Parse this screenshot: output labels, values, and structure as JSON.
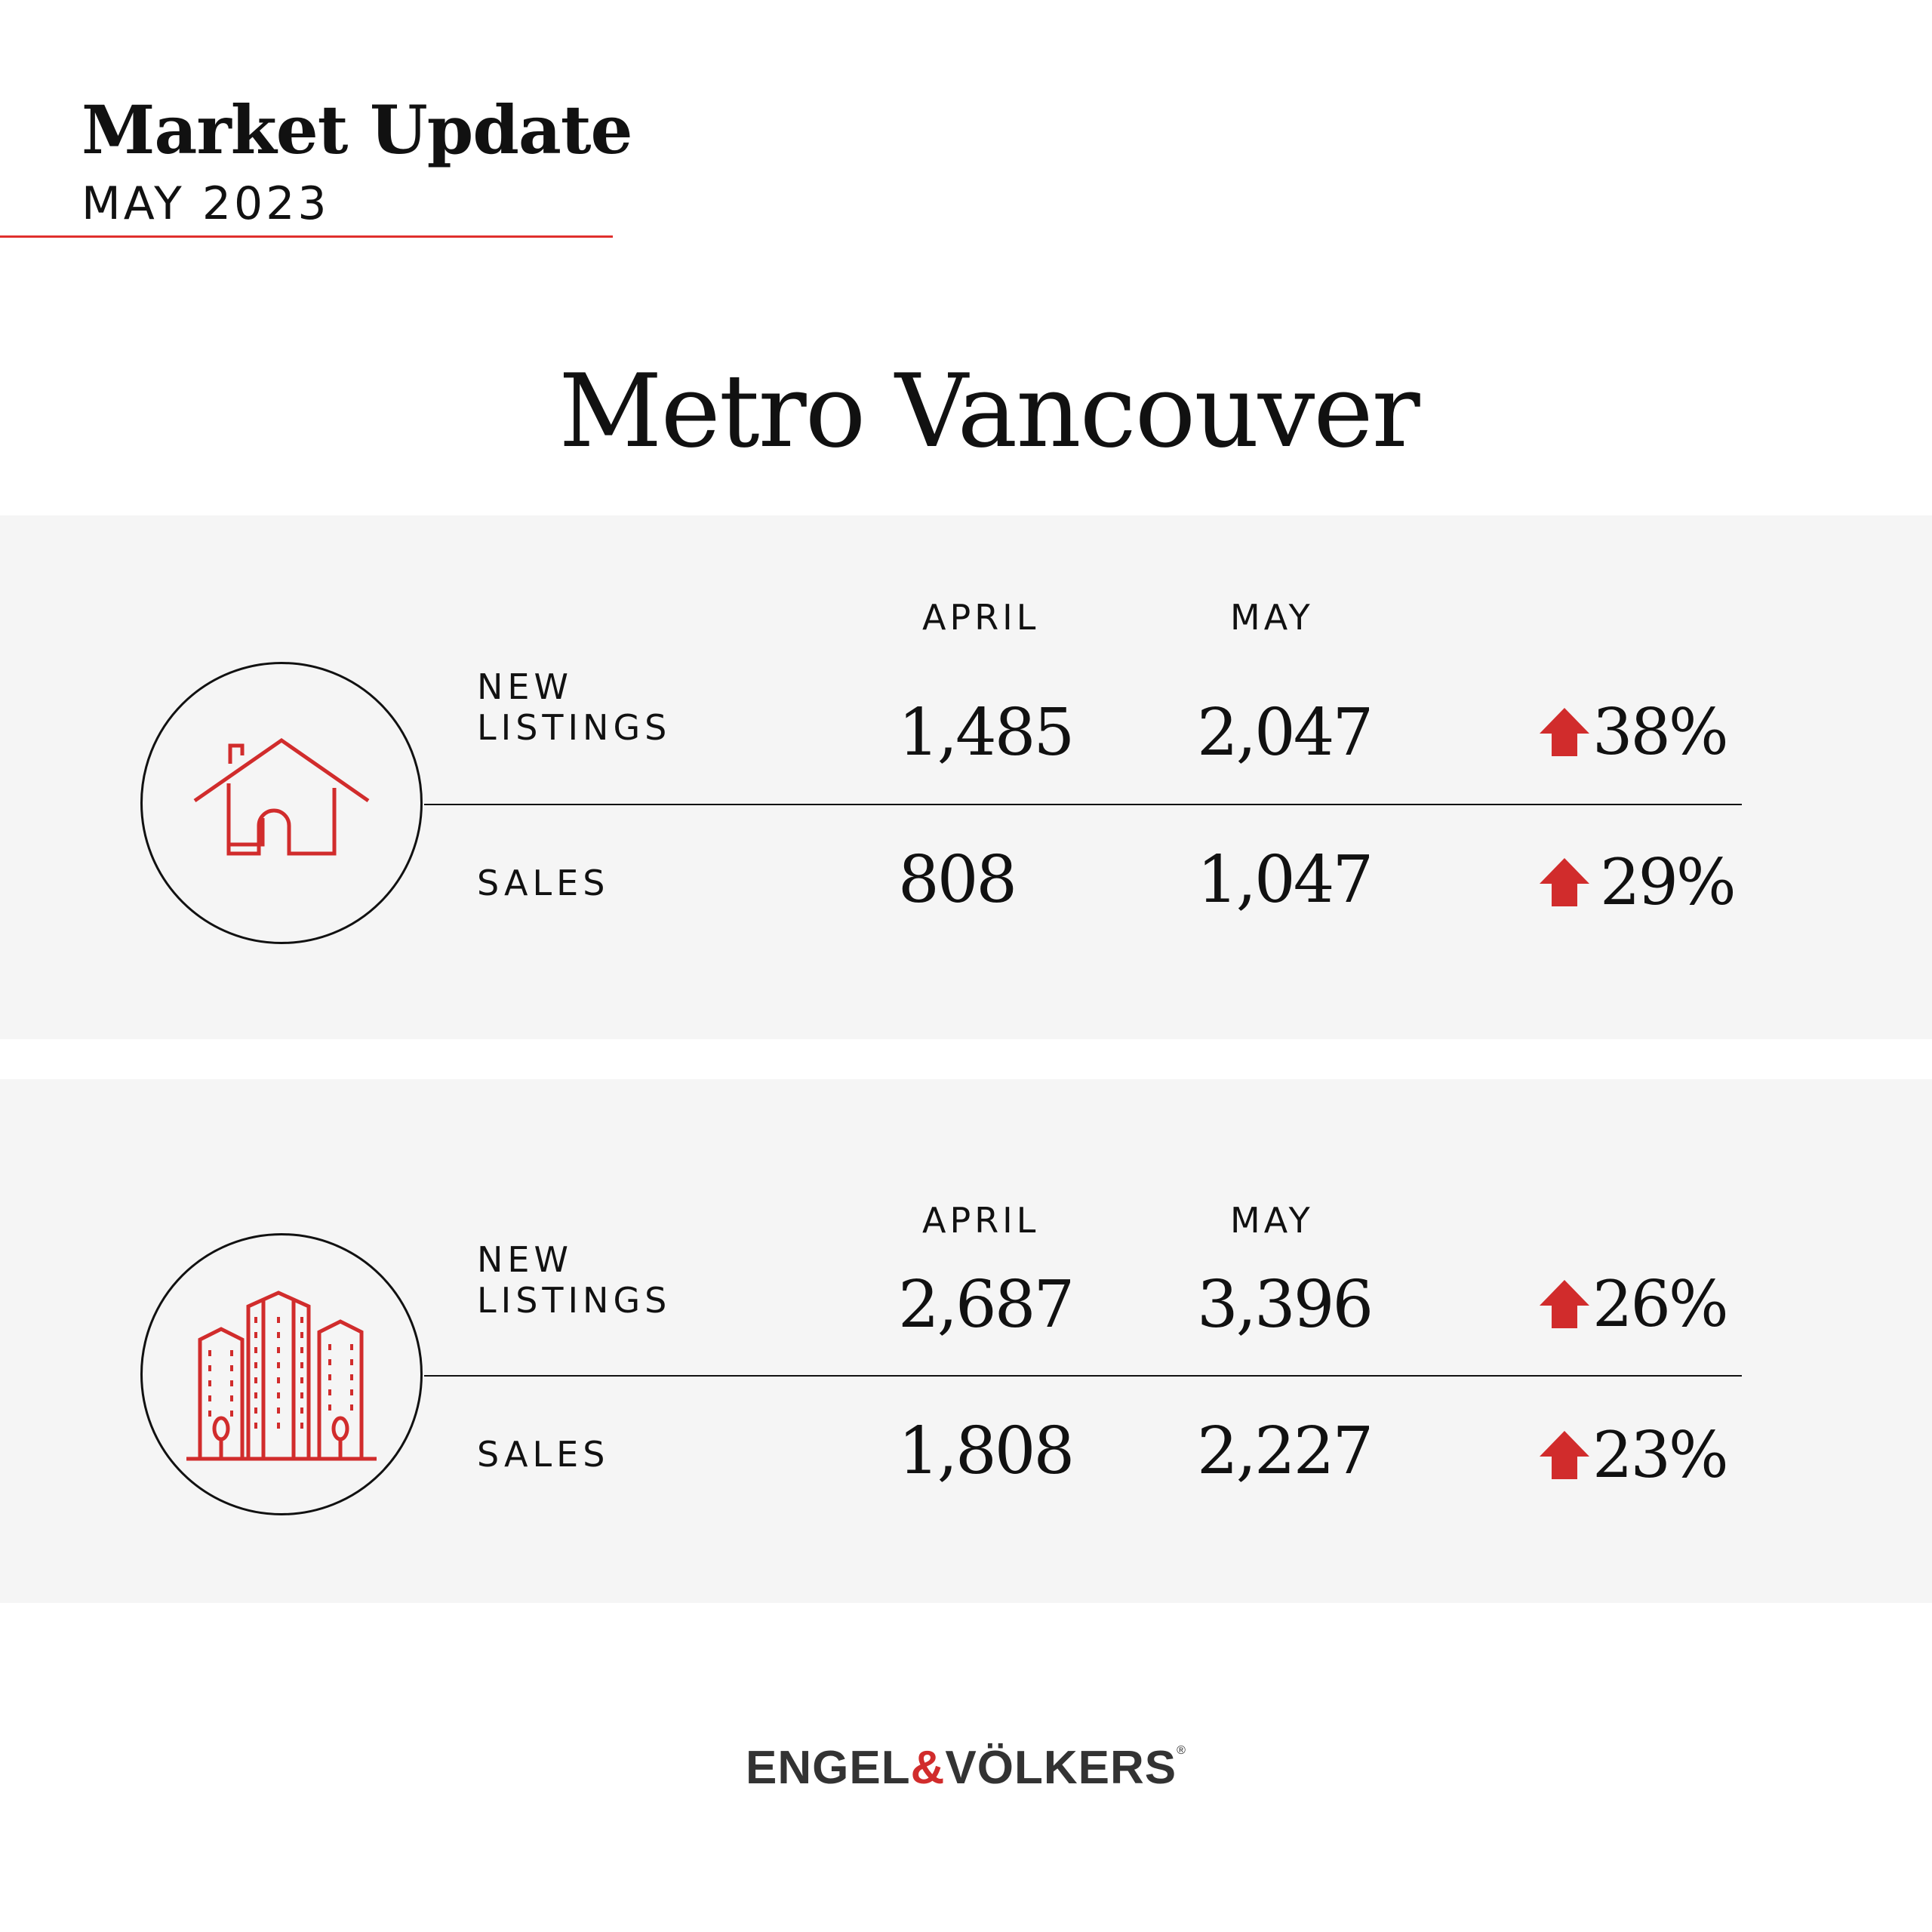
{
  "header": {
    "title": "Market Update",
    "subtitle": "MAY 2023"
  },
  "region": "Metro Vancouver",
  "accent_color": "#d12c2c",
  "panels": [
    {
      "icon": "house-icon",
      "columns": [
        "APRIL",
        "MAY"
      ],
      "rows": [
        {
          "label_line1": "NEW",
          "label_line2": "LISTINGS",
          "april": "1,485",
          "may": "2,047",
          "change": "38%",
          "direction": "up"
        },
        {
          "label_line1": "SALES",
          "label_line2": "",
          "april": "808",
          "may": "1,047",
          "change": "29%",
          "direction": "up"
        }
      ]
    },
    {
      "icon": "apartment-buildings-icon",
      "columns": [
        "APRIL",
        "MAY"
      ],
      "rows": [
        {
          "label_line1": "NEW",
          "label_line2": "LISTINGS",
          "april": "2,687",
          "may": "3,396",
          "change": "26%",
          "direction": "up"
        },
        {
          "label_line1": "SALES",
          "label_line2": "",
          "april": "1,808",
          "may": "2,227",
          "change": "23%",
          "direction": "up"
        }
      ]
    }
  ],
  "logo": {
    "part1": "ENGEL",
    "amp": "&",
    "part2": "VÖLKERS",
    "registered": "®"
  }
}
